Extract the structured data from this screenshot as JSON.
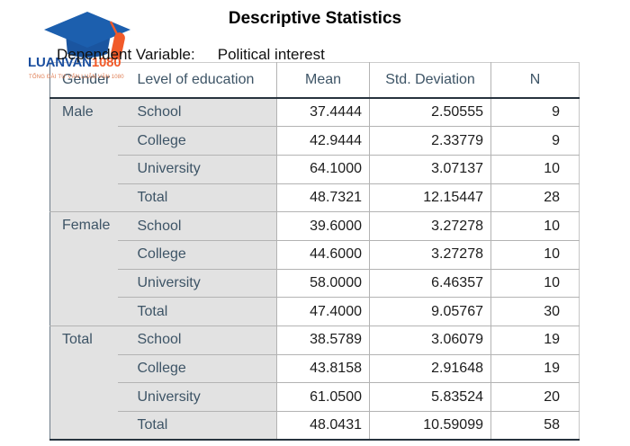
{
  "title": "Descriptive Statistics",
  "subtitle": {
    "label": "Dependent Variable:",
    "value": "Political interest"
  },
  "logo": {
    "brand_blue": "LUANVAN",
    "brand_orange": "1080",
    "tagline": "TỔNG ĐÀI TƯ VẤN LUẬN VĂN 1080"
  },
  "table": {
    "columns": [
      "Gender",
      "Level of education",
      "Mean",
      "Std. Deviation",
      "N"
    ],
    "groups": [
      {
        "gender": "Male",
        "rows": [
          [
            "School",
            "37.4444",
            "2.50555",
            "9"
          ],
          [
            "College",
            "42.9444",
            "2.33779",
            "9"
          ],
          [
            "University",
            "64.1000",
            "3.07137",
            "10"
          ],
          [
            "Total",
            "48.7321",
            "12.15447",
            "28"
          ]
        ]
      },
      {
        "gender": "Female",
        "rows": [
          [
            "School",
            "39.6000",
            "3.27278",
            "10"
          ],
          [
            "College",
            "44.6000",
            "3.27278",
            "10"
          ],
          [
            "University",
            "58.0000",
            "6.46357",
            "10"
          ],
          [
            "Total",
            "47.4000",
            "9.05767",
            "30"
          ]
        ]
      },
      {
        "gender": "Total",
        "rows": [
          [
            "School",
            "38.5789",
            "3.06079",
            "19"
          ],
          [
            "College",
            "43.8158",
            "2.91648",
            "19"
          ],
          [
            "University",
            "61.0500",
            "5.83524",
            "20"
          ],
          [
            "Total",
            "48.0431",
            "10.59099",
            "58"
          ]
        ]
      }
    ]
  },
  "colors": {
    "brand_blue": "#1c5fae",
    "brand_orange": "#f15a29",
    "header_text": "#3d5466",
    "data_text": "#1c1c1c",
    "label_cell_bg": "#e2e2e2",
    "grid_light": "#b3b3b3",
    "grid_dark": "#27333e"
  }
}
